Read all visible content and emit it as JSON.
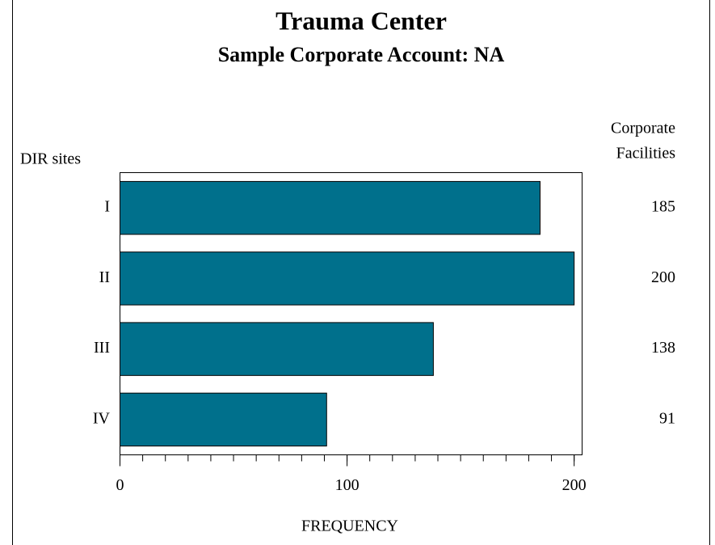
{
  "chart_data": {
    "type": "hbar",
    "title": "Trauma Center",
    "subtitle": "Sample Corporate Account: NA",
    "y_axis_label": "DIR sites",
    "x_axis_label": "FREQUENCY",
    "value_column_title": [
      "Corporate",
      "Facilities"
    ],
    "categories": [
      "I",
      "II",
      "III",
      "IV"
    ],
    "values": [
      185,
      200,
      138,
      91
    ],
    "color": "#00708c",
    "xlim": [
      0,
      203.5
    ],
    "xticks": [
      0,
      100,
      200
    ],
    "minor_tick_step": 10
  }
}
